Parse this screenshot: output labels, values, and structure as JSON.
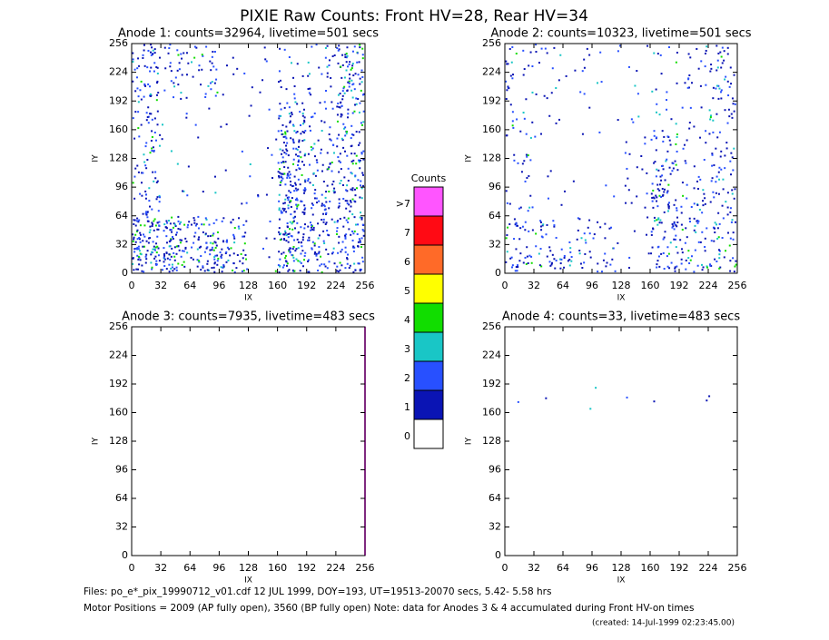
{
  "title": "PIXIE Raw Counts:  Front HV=28, Rear HV=34",
  "chart_data": [
    {
      "type": "heatmap",
      "title": "Anode 1: counts=32964, livetime=501 secs",
      "xlabel": "IX",
      "ylabel": "IY",
      "xlim": [
        0,
        256
      ],
      "ylim": [
        0,
        256
      ],
      "xticks": [
        0,
        32,
        64,
        96,
        128,
        160,
        192,
        224,
        256
      ],
      "yticks": [
        0,
        32,
        64,
        96,
        128,
        160,
        192,
        224,
        256
      ],
      "values": [
        [
          0.5,
          0.3,
          0.3,
          0.05,
          0.05,
          0.1,
          0.2,
          0.6
        ],
        [
          0.4,
          0.2,
          0.2,
          0.05,
          0.05,
          0.15,
          0.2,
          0.6
        ],
        [
          0.3,
          0.05,
          0.03,
          0.03,
          0.05,
          0.5,
          0.2,
          0.5
        ],
        [
          0.3,
          0.03,
          0.02,
          0.02,
          0.05,
          0.8,
          0.3,
          0.5
        ],
        [
          0.3,
          0.03,
          0.02,
          0.02,
          0.05,
          0.9,
          0.4,
          0.5
        ],
        [
          0.4,
          0.05,
          0.03,
          0.03,
          0.05,
          0.9,
          0.5,
          0.5
        ],
        [
          0.9,
          0.7,
          0.6,
          0.4,
          0.05,
          0.8,
          0.5,
          0.7
        ],
        [
          0.9,
          0.8,
          0.7,
          0.6,
          0.05,
          0.8,
          0.5,
          0.6
        ]
      ]
    },
    {
      "type": "heatmap",
      "title": "Anode 2: counts=10323, livetime=501 secs",
      "xlabel": "IX",
      "ylabel": "IY",
      "xlim": [
        0,
        256
      ],
      "ylim": [
        0,
        256
      ],
      "xticks": [
        0,
        32,
        64,
        96,
        128,
        160,
        192,
        224,
        256
      ],
      "yticks": [
        0,
        32,
        64,
        96,
        128,
        160,
        192,
        224,
        256
      ],
      "values": [
        [
          0.2,
          0.15,
          0.1,
          0.05,
          0.05,
          0.1,
          0.15,
          0.3
        ],
        [
          0.2,
          0.1,
          0.05,
          0.03,
          0.03,
          0.1,
          0.15,
          0.3
        ],
        [
          0.15,
          0.05,
          0.02,
          0.02,
          0.05,
          0.1,
          0.1,
          0.25
        ],
        [
          0.15,
          0.03,
          0.02,
          0.02,
          0.1,
          0.3,
          0.1,
          0.25
        ],
        [
          0.15,
          0.03,
          0.02,
          0.02,
          0.1,
          0.45,
          0.15,
          0.25
        ],
        [
          0.15,
          0.03,
          0.02,
          0.02,
          0.1,
          0.55,
          0.3,
          0.3
        ],
        [
          0.3,
          0.25,
          0.2,
          0.15,
          0.05,
          0.5,
          0.35,
          0.35
        ],
        [
          0.4,
          0.35,
          0.3,
          0.2,
          0.05,
          0.4,
          0.35,
          0.35
        ]
      ]
    },
    {
      "type": "heatmap",
      "title": "Anode 3: counts=7935, livetime=483 secs",
      "xlabel": "IX",
      "ylabel": "IY",
      "xlim": [
        0,
        256
      ],
      "ylim": [
        0,
        256
      ],
      "xticks": [
        0,
        32,
        64,
        96,
        128,
        160,
        192,
        224,
        256
      ],
      "yticks": [
        0,
        32,
        64,
        96,
        128,
        160,
        192,
        224,
        256
      ],
      "values": [
        [
          0,
          0,
          0,
          0,
          0,
          0,
          0,
          0
        ],
        [
          0,
          0,
          0,
          0,
          0,
          0,
          0,
          0
        ],
        [
          0,
          0,
          0,
          0,
          0,
          0,
          0,
          0
        ],
        [
          0,
          0,
          0,
          0,
          0,
          0,
          0,
          0
        ],
        [
          0,
          0,
          0,
          0,
          0,
          0,
          0,
          0
        ],
        [
          0,
          0,
          0,
          0,
          0,
          0,
          0,
          0
        ],
        [
          0,
          0,
          0,
          0,
          0,
          0,
          0,
          0
        ],
        [
          0,
          0,
          0,
          0,
          0,
          0,
          0,
          0
        ]
      ]
    },
    {
      "type": "heatmap",
      "title": "Anode 4: counts=33, livetime=483 secs",
      "xlabel": "IX",
      "ylabel": "IY",
      "xlim": [
        0,
        256
      ],
      "ylim": [
        0,
        256
      ],
      "xticks": [
        0,
        32,
        64,
        96,
        128,
        160,
        192,
        224,
        256
      ],
      "yticks": [
        0,
        32,
        64,
        96,
        128,
        160,
        192,
        224,
        256
      ],
      "values": [
        [
          0,
          0,
          0,
          0,
          0,
          0,
          0,
          0
        ],
        [
          0,
          0,
          0,
          0,
          0,
          0,
          0,
          0
        ],
        [
          0.02,
          0.02,
          0.02,
          0.02,
          0.02,
          0.02,
          0.02,
          0.02
        ],
        [
          0,
          0,
          0,
          0,
          0,
          0,
          0,
          0
        ],
        [
          0,
          0,
          0,
          0,
          0,
          0,
          0,
          0
        ],
        [
          0,
          0,
          0,
          0,
          0,
          0,
          0,
          0
        ],
        [
          0,
          0,
          0,
          0,
          0,
          0,
          0,
          0
        ],
        [
          0,
          0,
          0,
          0,
          0,
          0,
          0,
          0
        ]
      ]
    }
  ],
  "colorbar": {
    "title": "Counts",
    "labels": [
      ">7",
      "7",
      "6",
      "5",
      "4",
      "3",
      "2",
      "1",
      "0"
    ],
    "colors": [
      "#ff55ff",
      "#ff0a14",
      "#ff6a28",
      "#ffff00",
      "#11dd00",
      "#19c6c6",
      "#2850ff",
      "#0a14b4",
      "#ffffff"
    ]
  },
  "footer": {
    "files": "Files: po_e*_pix_19990712_v01.cdf    12 JUL 1999, DOY=193, UT=19513-20070 secs,  5.42- 5.58 hrs",
    "motor": "Motor Positions = 2009 (AP fully open), 3560 (BP fully open)    Note: data for Anodes 3 & 4 accumulated during Front HV-on times",
    "created": "(created: 14-Jul-1999 02:23:45.00)"
  }
}
